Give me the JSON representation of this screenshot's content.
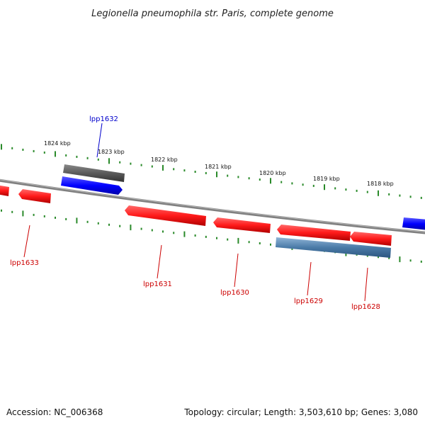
{
  "title": "Legionella pneumophila str. Paris, complete genome",
  "footer": {
    "accession": "Accession: NC_006368",
    "topology": "Topology: circular; Length: 3,503,610 bp; Genes: 3,080"
  },
  "scale_labels": [
    "1824 kbp",
    "1823 kbp",
    "1822 kbp",
    "1821 kbp",
    "1820 kbp",
    "1819 kbp",
    "1818 kbp"
  ],
  "gene_labels": {
    "lpp1632": "lpp1632",
    "lpp1633": "lpp1633",
    "lpp1631": "lpp1631",
    "lpp1630": "lpp1630",
    "lpp1629": "lpp1629",
    "lpp1628": "lpp1628"
  },
  "colors": {
    "forward_gene": "#0000ff",
    "reverse_gene": "#ff0000",
    "forward_other": "#555555",
    "reverse_other": "#4a7aa7",
    "backbone": "#777777",
    "ticks": "#2a8a2a",
    "label_blue": "#0000cc",
    "label_red": "#cc0000"
  }
}
